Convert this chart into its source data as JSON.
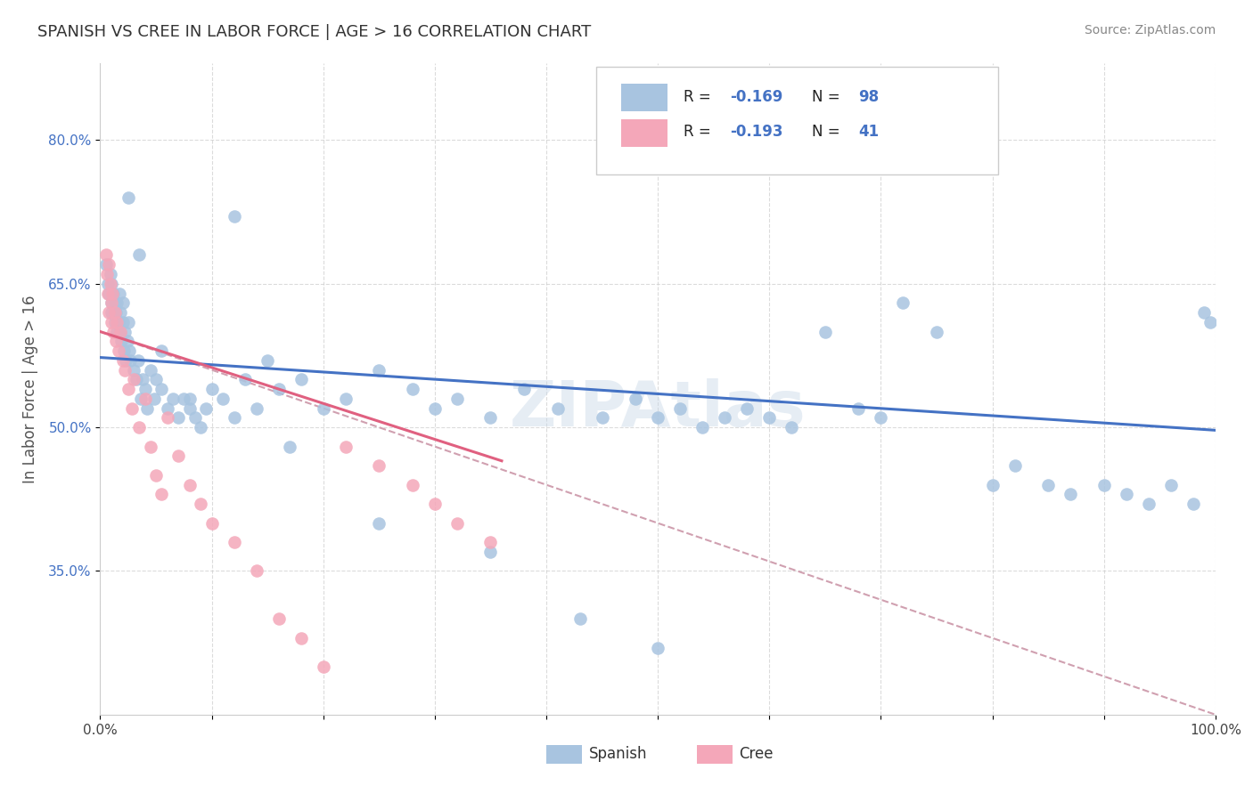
{
  "title": "SPANISH VS CREE IN LABOR FORCE | AGE > 16 CORRELATION CHART",
  "source": "Source: ZipAtlas.com",
  "ylabel": "In Labor Force | Age > 16",
  "xlim": [
    0.0,
    1.0
  ],
  "ylim": [
    0.2,
    0.88
  ],
  "xticks": [
    0.0,
    0.1,
    0.2,
    0.3,
    0.4,
    0.5,
    0.6,
    0.7,
    0.8,
    0.9,
    1.0
  ],
  "xtick_labels": [
    "0.0%",
    "",
    "",
    "",
    "",
    "",
    "",
    "",
    "",
    "",
    "100.0%"
  ],
  "ytick_labels": [
    "35.0%",
    "50.0%",
    "65.0%",
    "80.0%"
  ],
  "yticks": [
    0.35,
    0.5,
    0.65,
    0.8
  ],
  "spanish_color": "#a8c4e0",
  "cree_color": "#f4a7b9",
  "trend_spanish_color": "#4472c4",
  "trend_cree_color": "#e06080",
  "trend_dashed_color": "#d0a0b0",
  "spanish_points_x": [
    0.005,
    0.007,
    0.008,
    0.009,
    0.01,
    0.01,
    0.01,
    0.012,
    0.013,
    0.013,
    0.014,
    0.015,
    0.015,
    0.016,
    0.017,
    0.018,
    0.018,
    0.019,
    0.02,
    0.02,
    0.021,
    0.022,
    0.023,
    0.024,
    0.025,
    0.026,
    0.027,
    0.03,
    0.032,
    0.034,
    0.036,
    0.038,
    0.04,
    0.042,
    0.045,
    0.048,
    0.05,
    0.055,
    0.06,
    0.065,
    0.07,
    0.075,
    0.08,
    0.085,
    0.09,
    0.095,
    0.1,
    0.11,
    0.12,
    0.13,
    0.14,
    0.15,
    0.16,
    0.18,
    0.2,
    0.22,
    0.25,
    0.28,
    0.3,
    0.32,
    0.35,
    0.38,
    0.41,
    0.45,
    0.48,
    0.5,
    0.52,
    0.54,
    0.56,
    0.58,
    0.6,
    0.62,
    0.65,
    0.68,
    0.7,
    0.72,
    0.75,
    0.8,
    0.82,
    0.85,
    0.87,
    0.9,
    0.92,
    0.94,
    0.96,
    0.98,
    0.99,
    0.995,
    0.025,
    0.035,
    0.055,
    0.08,
    0.12,
    0.17,
    0.25,
    0.35,
    0.43,
    0.5
  ],
  "spanish_points_y": [
    0.67,
    0.65,
    0.64,
    0.66,
    0.63,
    0.65,
    0.62,
    0.64,
    0.61,
    0.63,
    0.62,
    0.6,
    0.63,
    0.61,
    0.64,
    0.6,
    0.62,
    0.59,
    0.61,
    0.63,
    0.58,
    0.6,
    0.57,
    0.59,
    0.61,
    0.58,
    0.57,
    0.56,
    0.55,
    0.57,
    0.53,
    0.55,
    0.54,
    0.52,
    0.56,
    0.53,
    0.55,
    0.54,
    0.52,
    0.53,
    0.51,
    0.53,
    0.52,
    0.51,
    0.5,
    0.52,
    0.54,
    0.53,
    0.72,
    0.55,
    0.52,
    0.57,
    0.54,
    0.55,
    0.52,
    0.53,
    0.56,
    0.54,
    0.52,
    0.53,
    0.51,
    0.54,
    0.52,
    0.51,
    0.53,
    0.51,
    0.52,
    0.5,
    0.51,
    0.52,
    0.51,
    0.5,
    0.6,
    0.52,
    0.51,
    0.63,
    0.6,
    0.44,
    0.46,
    0.44,
    0.43,
    0.44,
    0.43,
    0.42,
    0.44,
    0.42,
    0.62,
    0.61,
    0.74,
    0.68,
    0.58,
    0.53,
    0.51,
    0.48,
    0.4,
    0.37,
    0.3,
    0.27
  ],
  "cree_points_x": [
    0.005,
    0.006,
    0.007,
    0.008,
    0.008,
    0.009,
    0.01,
    0.01,
    0.011,
    0.012,
    0.013,
    0.014,
    0.015,
    0.016,
    0.018,
    0.02,
    0.022,
    0.025,
    0.028,
    0.03,
    0.035,
    0.04,
    0.045,
    0.05,
    0.055,
    0.06,
    0.07,
    0.08,
    0.09,
    0.1,
    0.12,
    0.14,
    0.16,
    0.18,
    0.2,
    0.22,
    0.25,
    0.28,
    0.3,
    0.32,
    0.35
  ],
  "cree_points_y": [
    0.68,
    0.66,
    0.64,
    0.67,
    0.62,
    0.65,
    0.63,
    0.61,
    0.64,
    0.6,
    0.62,
    0.59,
    0.61,
    0.58,
    0.6,
    0.57,
    0.56,
    0.54,
    0.52,
    0.55,
    0.5,
    0.53,
    0.48,
    0.45,
    0.43,
    0.51,
    0.47,
    0.44,
    0.42,
    0.4,
    0.38,
    0.35,
    0.3,
    0.28,
    0.25,
    0.48,
    0.46,
    0.44,
    0.42,
    0.4,
    0.38
  ],
  "spanish_trend_x": [
    0.0,
    1.0
  ],
  "spanish_trend_y": [
    0.573,
    0.497
  ],
  "cree_trend_x": [
    0.0,
    0.36
  ],
  "cree_trend_y": [
    0.6,
    0.465
  ],
  "dashed_trend_x": [
    0.0,
    1.0
  ],
  "dashed_trend_y": [
    0.6,
    0.2
  ]
}
